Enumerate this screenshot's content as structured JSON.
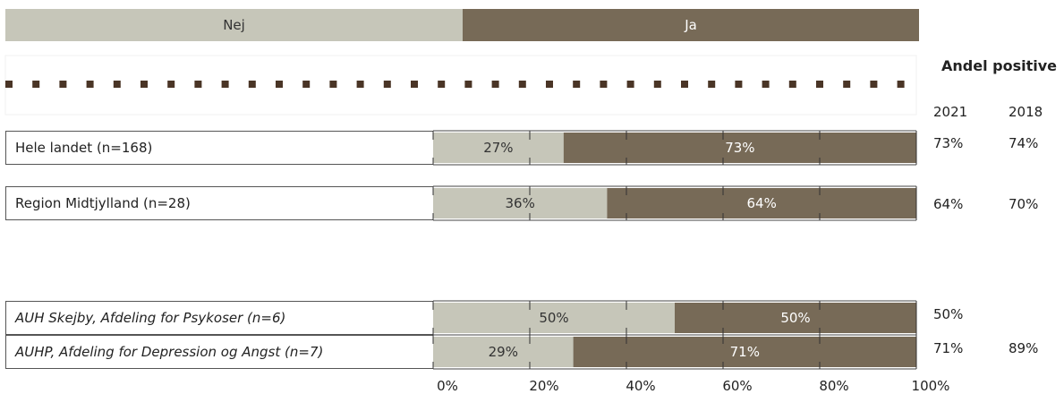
{
  "legend": [
    {
      "label": "Nej",
      "color": "#c6c6b9",
      "text_color": "#333333"
    },
    {
      "label": "Ja",
      "color": "#776a57",
      "text_color": "#ffffff"
    }
  ],
  "side_header": {
    "title": "Andel positive",
    "year1": "2021",
    "year2": "2018"
  },
  "chart_data": {
    "type": "bar",
    "orientation": "horizontal",
    "stacked": true,
    "categories": [
      "Hele landet (n=168)",
      "Region Midtjylland (n=28)",
      "AUH Skejby, Afdeling for Psykoser (n=6)",
      "AUHP, Afdeling for Depression og Angst (n=7)"
    ],
    "series": [
      {
        "name": "Nej",
        "values": [
          27,
          36,
          50,
          29
        ],
        "labels": [
          "27%",
          "36%",
          "50%",
          "29%"
        ]
      },
      {
        "name": "Ja",
        "values": [
          73,
          64,
          50,
          71
        ],
        "labels": [
          "73%",
          "64%",
          "50%",
          "71%"
        ]
      }
    ],
    "andel_positive_2021": [
      "73%",
      "64%",
      "50%",
      "71%"
    ],
    "andel_positive_2018": [
      "74%",
      "70%",
      "",
      "89%"
    ],
    "xlim": [
      0,
      100
    ],
    "xticks": [
      "0%",
      "20%",
      "40%",
      "60%",
      "80%",
      "100%"
    ]
  }
}
